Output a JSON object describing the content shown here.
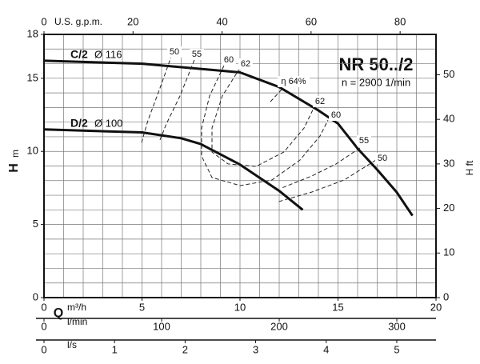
{
  "chart_data": {
    "type": "line",
    "title": "NR 50../2",
    "subtitle": "n = 2900 1/min",
    "x_axis_symbol": "Q",
    "x_axis_unit": "m³/h",
    "y_axis_symbol": "H",
    "y_axis_unit": "m",
    "y2_label": "H ft",
    "xlim": [
      0,
      20
    ],
    "xticks": [
      0,
      5,
      10,
      15,
      20
    ],
    "ylim": [
      0,
      18
    ],
    "yticks": [
      0,
      5,
      10,
      15,
      18
    ],
    "y2lim": [
      0,
      59.06
    ],
    "y2ticks": [
      0,
      10,
      20,
      30,
      40,
      50
    ],
    "grid": true,
    "xgrid": [
      0,
      1,
      2,
      3,
      4,
      5,
      6,
      7,
      8,
      9,
      10,
      11,
      12,
      13,
      14,
      15,
      16,
      17,
      18,
      19,
      20
    ],
    "ygrid": [
      0,
      1,
      2,
      3,
      4,
      5,
      6,
      7,
      8,
      9,
      10,
      11,
      12,
      13,
      14,
      15,
      16,
      17,
      18
    ],
    "extra_x_axes": [
      {
        "label": "U.S. g.p.m.",
        "lim": [
          0,
          88.06
        ],
        "ticks": [
          0,
          20,
          40,
          60,
          80
        ]
      },
      {
        "label": "l/min",
        "lim": [
          0,
          333.3
        ],
        "ticks": [
          0,
          100,
          200,
          300
        ]
      },
      {
        "label": "l/s",
        "lim": [
          0,
          5.556
        ],
        "ticks": [
          0,
          1,
          2,
          3,
          4,
          5
        ]
      }
    ],
    "series": [
      {
        "name": "C/2",
        "diameter": "Ø 116",
        "color": "#111111",
        "x": [
          0,
          5,
          10,
          12,
          14,
          15,
          16,
          17,
          18,
          18.8
        ],
        "values": [
          16.2,
          16.0,
          15.4,
          14.4,
          12.8,
          11.9,
          10.2,
          8.75,
          7.2,
          5.6
        ]
      },
      {
        "name": "D/2",
        "diameter": "Ø 100",
        "color": "#111111",
        "x": [
          0,
          5,
          7,
          8,
          10,
          12,
          13.2
        ],
        "values": [
          11.5,
          11.3,
          10.9,
          10.5,
          9.1,
          7.3,
          6.0
        ]
      }
    ],
    "efficiency": [
      {
        "name": "50",
        "x": [
          6.53,
          5.92,
          5.31,
          4.98,
          null,
          16.94,
          15.31,
          13.67,
          11.96
        ],
        "values": [
          16.63,
          14.33,
          12.14,
          10.61,
          null,
          9.41,
          8.04,
          7.22,
          6.56
        ]
      },
      {
        "name": "55",
        "x": [
          7.67,
          6.94,
          6.24,
          5.92,
          null,
          16.12,
          14.9,
          13.67,
          12.12
        ],
        "values": [
          16.25,
          13.79,
          11.87,
          10.78,
          null,
          10.23,
          9.14,
          8.32,
          7.49
        ]
      },
      {
        "name": "60",
        "x": [
          9.18,
          8.45,
          8.04,
          8.04,
          8.57,
          10,
          11.63,
          13.06,
          14.08,
          14.49
        ],
        "values": [
          15.86,
          13.79,
          11.6,
          9.68,
          8.21,
          7.66,
          8.04,
          9.41,
          11.05,
          12.14
        ]
      },
      {
        "name": "62",
        "x": [
          10,
          9.1,
          8.57,
          8.57,
          9.39,
          10.82,
          12.24,
          13.27,
          13.8
        ],
        "values": [
          15.7,
          13.79,
          11.6,
          9.96,
          9.14,
          8.97,
          9.96,
          11.6,
          13.07
        ]
      },
      {
        "name": "η 64%",
        "x": [
          11.55,
          12.12
        ],
        "values": [
          13.4,
          14.22
        ]
      }
    ]
  }
}
